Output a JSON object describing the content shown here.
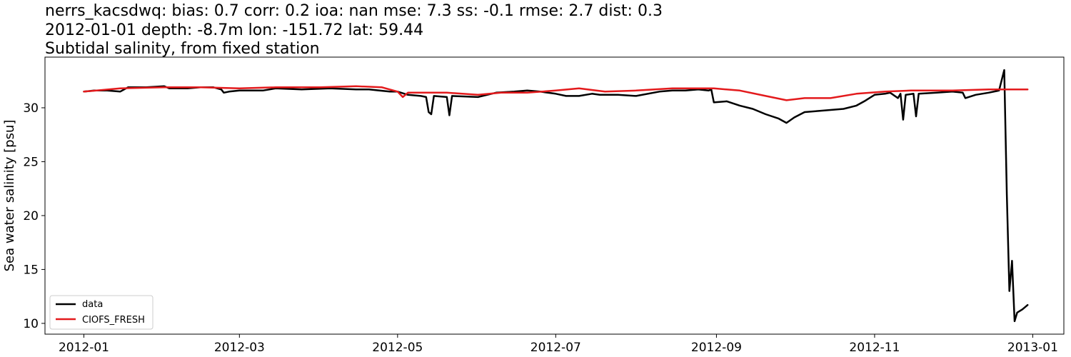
{
  "chart_data": {
    "type": "line",
    "title_lines": [
      "nerrs_kacsdwq: bias: 0.7  corr: 0.2  ioa: nan  mse: 7.3  ss: -0.1  rmse: 2.7  dist: 0.3",
      "2012-01-01 depth: -8.7m lon: -151.72 lat: 59.44",
      "Subtidal salinity, from fixed station"
    ],
    "xlabel": "",
    "ylabel": "Sea water salinity [psu]",
    "xlim": [
      "2011-12-17",
      "2013-01-13"
    ],
    "ylim": [
      9.0,
      34.7
    ],
    "x_ticks": [
      "2012-01",
      "2012-03",
      "2012-05",
      "2012-07",
      "2012-09",
      "2012-11",
      "2013-01"
    ],
    "y_ticks": [
      10,
      15,
      20,
      25,
      30
    ],
    "legend": {
      "placement": "lower-left"
    },
    "series": [
      {
        "name": "data",
        "color": "#000000",
        "points": [
          [
            "2012-01-01",
            31.5
          ],
          [
            "2012-01-05",
            31.6
          ],
          [
            "2012-01-10",
            31.6
          ],
          [
            "2012-01-15",
            31.5
          ],
          [
            "2012-01-18",
            31.9
          ],
          [
            "2012-01-25",
            31.9
          ],
          [
            "2012-02-01",
            32.0
          ],
          [
            "2012-02-03",
            31.8
          ],
          [
            "2012-02-10",
            31.8
          ],
          [
            "2012-02-15",
            31.9
          ],
          [
            "2012-02-20",
            31.9
          ],
          [
            "2012-02-23",
            31.7
          ],
          [
            "2012-02-24",
            31.4
          ],
          [
            "2012-02-26",
            31.5
          ],
          [
            "2012-03-01",
            31.6
          ],
          [
            "2012-03-10",
            31.6
          ],
          [
            "2012-03-15",
            31.8
          ],
          [
            "2012-03-25",
            31.7
          ],
          [
            "2012-04-05",
            31.8
          ],
          [
            "2012-04-15",
            31.7
          ],
          [
            "2012-04-20",
            31.7
          ],
          [
            "2012-04-28",
            31.5
          ],
          [
            "2012-05-01",
            31.5
          ],
          [
            "2012-05-05",
            31.2
          ],
          [
            "2012-05-10",
            31.1
          ],
          [
            "2012-05-12",
            31.0
          ],
          [
            "2012-05-13",
            29.6
          ],
          [
            "2012-05-14",
            29.4
          ],
          [
            "2012-05-15",
            31.1
          ],
          [
            "2012-05-20",
            31.0
          ],
          [
            "2012-05-21",
            29.3
          ],
          [
            "2012-05-22",
            31.1
          ],
          [
            "2012-06-01",
            31.0
          ],
          [
            "2012-06-08",
            31.4
          ],
          [
            "2012-06-15",
            31.5
          ],
          [
            "2012-06-20",
            31.6
          ],
          [
            "2012-06-25",
            31.5
          ],
          [
            "2012-07-01",
            31.3
          ],
          [
            "2012-07-05",
            31.1
          ],
          [
            "2012-07-10",
            31.1
          ],
          [
            "2012-07-15",
            31.3
          ],
          [
            "2012-07-18",
            31.2
          ],
          [
            "2012-07-25",
            31.2
          ],
          [
            "2012-08-01",
            31.1
          ],
          [
            "2012-08-10",
            31.5
          ],
          [
            "2012-08-15",
            31.6
          ],
          [
            "2012-08-20",
            31.6
          ],
          [
            "2012-08-25",
            31.7
          ],
          [
            "2012-08-29",
            31.6
          ],
          [
            "2012-08-30",
            31.7
          ],
          [
            "2012-08-31",
            30.5
          ],
          [
            "2012-09-05",
            30.6
          ],
          [
            "2012-09-10",
            30.2
          ],
          [
            "2012-09-15",
            29.9
          ],
          [
            "2012-09-20",
            29.4
          ],
          [
            "2012-09-25",
            29.0
          ],
          [
            "2012-09-28",
            28.6
          ],
          [
            "2012-10-01",
            29.1
          ],
          [
            "2012-10-05",
            29.6
          ],
          [
            "2012-10-10",
            29.7
          ],
          [
            "2012-10-15",
            29.8
          ],
          [
            "2012-10-20",
            29.9
          ],
          [
            "2012-10-25",
            30.2
          ],
          [
            "2012-10-28",
            30.6
          ],
          [
            "2012-11-01",
            31.2
          ],
          [
            "2012-11-05",
            31.3
          ],
          [
            "2012-11-07",
            31.4
          ],
          [
            "2012-11-10",
            30.9
          ],
          [
            "2012-11-11",
            31.3
          ],
          [
            "2012-11-12",
            28.9
          ],
          [
            "2012-11-13",
            31.2
          ],
          [
            "2012-11-16",
            31.3
          ],
          [
            "2012-11-17",
            29.2
          ],
          [
            "2012-11-18",
            31.3
          ],
          [
            "2012-11-25",
            31.4
          ],
          [
            "2012-12-01",
            31.5
          ],
          [
            "2012-12-05",
            31.4
          ],
          [
            "2012-12-06",
            30.9
          ],
          [
            "2012-12-10",
            31.2
          ],
          [
            "2012-12-15",
            31.4
          ],
          [
            "2012-12-19",
            31.6
          ],
          [
            "2012-12-21",
            33.5
          ],
          [
            "2012-12-22",
            22.0
          ],
          [
            "2012-12-23",
            13.0
          ],
          [
            "2012-12-24",
            15.8
          ],
          [
            "2012-12-25",
            10.2
          ],
          [
            "2012-12-26",
            11.0
          ],
          [
            "2012-12-28",
            11.3
          ],
          [
            "2012-12-30",
            11.7
          ]
        ]
      },
      {
        "name": "CIOFS_FRESH",
        "color": "#e31a1c",
        "points": [
          [
            "2012-01-01",
            31.5
          ],
          [
            "2012-01-15",
            31.8
          ],
          [
            "2012-02-01",
            31.9
          ],
          [
            "2012-02-15",
            31.9
          ],
          [
            "2012-03-01",
            31.8
          ],
          [
            "2012-03-15",
            31.9
          ],
          [
            "2012-04-01",
            31.9
          ],
          [
            "2012-04-15",
            32.0
          ],
          [
            "2012-04-25",
            31.9
          ],
          [
            "2012-05-01",
            31.5
          ],
          [
            "2012-05-03",
            31.0
          ],
          [
            "2012-05-05",
            31.4
          ],
          [
            "2012-05-20",
            31.4
          ],
          [
            "2012-06-01",
            31.2
          ],
          [
            "2012-06-10",
            31.4
          ],
          [
            "2012-06-20",
            31.4
          ],
          [
            "2012-07-01",
            31.6
          ],
          [
            "2012-07-10",
            31.8
          ],
          [
            "2012-07-20",
            31.5
          ],
          [
            "2012-08-01",
            31.6
          ],
          [
            "2012-08-15",
            31.8
          ],
          [
            "2012-08-31",
            31.8
          ],
          [
            "2012-09-10",
            31.6
          ],
          [
            "2012-09-20",
            31.1
          ],
          [
            "2012-09-28",
            30.7
          ],
          [
            "2012-10-05",
            30.9
          ],
          [
            "2012-10-15",
            30.9
          ],
          [
            "2012-10-25",
            31.3
          ],
          [
            "2012-11-05",
            31.5
          ],
          [
            "2012-11-15",
            31.6
          ],
          [
            "2012-12-01",
            31.6
          ],
          [
            "2012-12-15",
            31.7
          ],
          [
            "2012-12-30",
            31.7
          ]
        ]
      }
    ]
  }
}
